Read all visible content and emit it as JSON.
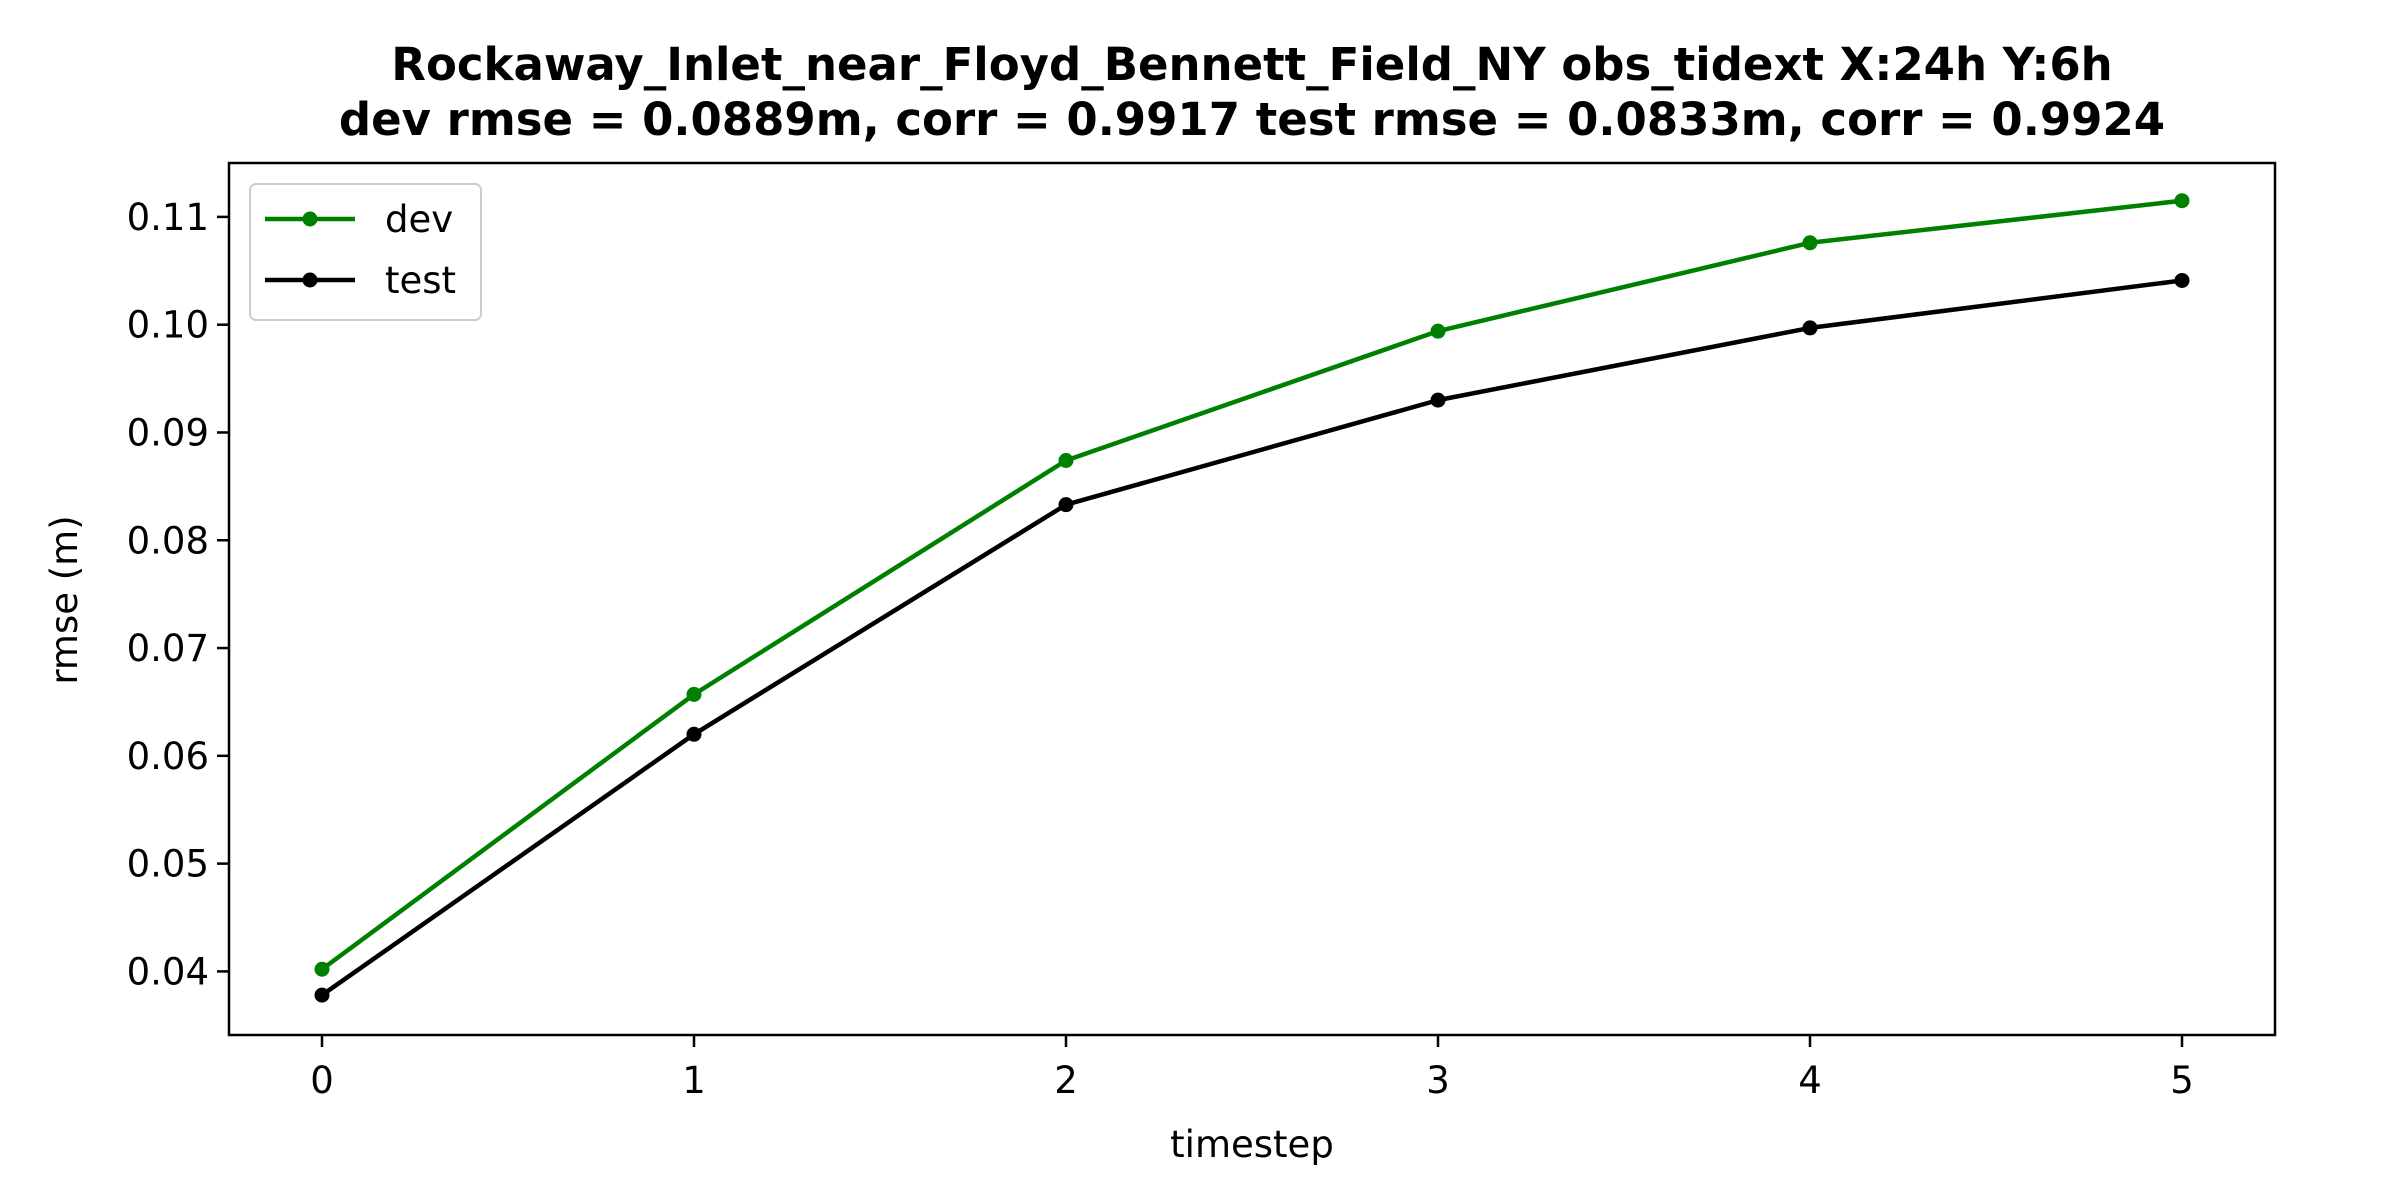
{
  "figure": {
    "title_line1": "Rockaway_Inlet_near_Floyd_Bennett_Field_NY   obs_tidext   X:24h   Y:6h",
    "title_line2": "dev rmse = 0.0889m, corr = 0.9917   test rmse = 0.0833m, corr = 0.9924"
  },
  "chart_data": {
    "type": "line",
    "title": "Rockaway_Inlet_near_Floyd_Bennett_Field_NY   obs_tidext   X:24h   Y:6h",
    "subtitle": "dev rmse = 0.0889m, corr = 0.9917   test rmse = 0.0833m, corr = 0.9924",
    "xlabel": "timestep",
    "ylabel": "rmse (m)",
    "x": [
      0,
      1,
      2,
      3,
      4,
      5
    ],
    "xlim": [
      -0.25,
      5.25
    ],
    "ylim": [
      0.0341,
      0.115
    ],
    "xticks": [
      0,
      1,
      2,
      3,
      4,
      5
    ],
    "xtick_labels": [
      "0",
      "1",
      "2",
      "3",
      "4",
      "5"
    ],
    "yticks": [
      0.04,
      0.05,
      0.06,
      0.07,
      0.08,
      0.09,
      0.1,
      0.11
    ],
    "ytick_labels": [
      "0.04",
      "0.05",
      "0.06",
      "0.07",
      "0.08",
      "0.09",
      "0.10",
      "0.11"
    ],
    "grid": false,
    "legend_position": "upper-left",
    "series": [
      {
        "name": "dev",
        "color": "#008000",
        "marker": "circle",
        "values": [
          0.0402,
          0.0657,
          0.0874,
          0.0994,
          0.1076,
          0.1115
        ]
      },
      {
        "name": "test",
        "color": "#000000",
        "marker": "circle",
        "values": [
          0.0378,
          0.062,
          0.0833,
          0.093,
          0.0997,
          0.1041
        ]
      }
    ]
  }
}
